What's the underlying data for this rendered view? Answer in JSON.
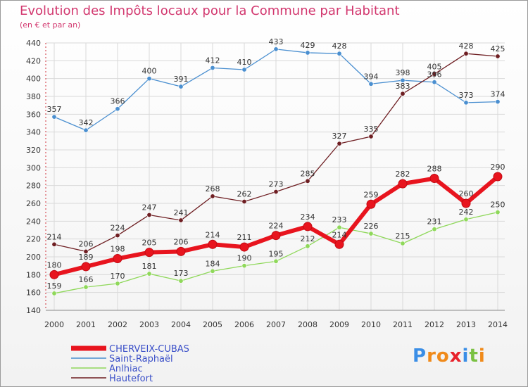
{
  "title": "Evolution des Impôts locaux pour la Commune par Habitant",
  "subtitle": "(en € et par an)",
  "logo": {
    "letters": [
      "P",
      "r",
      "o",
      "x",
      "i",
      "t",
      "i"
    ],
    "colors": [
      "#3a8ee6",
      "#f08a1a",
      "#f08a1a",
      "#e8222b",
      "#3a8ee6",
      "#7ac142",
      "#f08a1a"
    ]
  },
  "chart_data": {
    "type": "line",
    "x": [
      2000,
      2001,
      2002,
      2003,
      2004,
      2005,
      2006,
      2007,
      2008,
      2009,
      2010,
      2011,
      2012,
      2013,
      2014
    ],
    "ylim": [
      140,
      440
    ],
    "yticks": [
      140,
      160,
      180,
      200,
      220,
      240,
      260,
      280,
      300,
      320,
      340,
      360,
      380,
      400,
      420,
      440
    ],
    "grid": true,
    "legend_position": "bottom-left",
    "series": [
      {
        "name": "CHERVEIX-CUBAS",
        "color": "#e8141e",
        "values": [
          180,
          189,
          198,
          205,
          206,
          214,
          211,
          224,
          234,
          214,
          259,
          282,
          288,
          260,
          290
        ]
      },
      {
        "name": "Saint-Raphaël",
        "color": "#4a8fd0",
        "values": [
          357,
          342,
          366,
          400,
          391,
          412,
          410,
          433,
          429,
          428,
          394,
          398,
          396,
          373,
          374
        ]
      },
      {
        "name": "Anlhiac",
        "color": "#8fd85a",
        "values": [
          159,
          166,
          170,
          181,
          173,
          184,
          190,
          195,
          212,
          233,
          226,
          215,
          231,
          242,
          250
        ]
      },
      {
        "name": "Hautefort",
        "color": "#6e1e22",
        "values": [
          214,
          206,
          224,
          247,
          241,
          268,
          262,
          273,
          285,
          327,
          335,
          383,
          405,
          428,
          425
        ]
      }
    ]
  }
}
